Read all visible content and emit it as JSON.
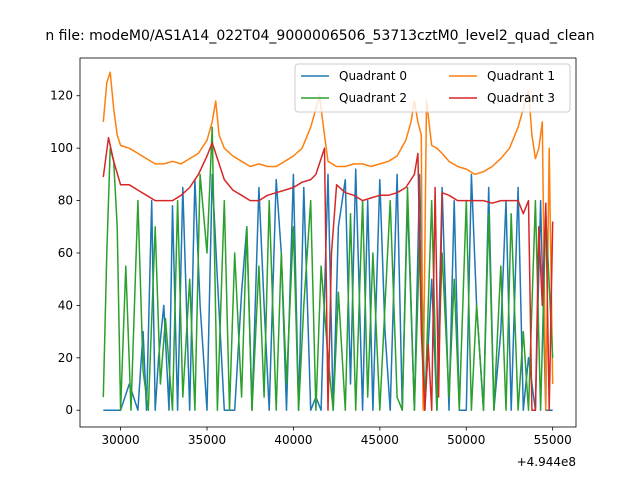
{
  "chart_data": {
    "type": "line",
    "title": "n file: modeM0/AS1A14_022T04_9000006506_53713cztM0_level2_quad_clean",
    "xlabel": "",
    "ylabel": "",
    "x_offset_label": "+4.944e8",
    "xlim": [
      27650,
      56350
    ],
    "ylim": [
      -6.4,
      134.4
    ],
    "x_ticks": [
      30000,
      35000,
      40000,
      45000,
      50000,
      55000
    ],
    "x_tick_labels": [
      "30000",
      "35000",
      "40000",
      "45000",
      "50000",
      "55000"
    ],
    "y_ticks": [
      0,
      20,
      40,
      60,
      80,
      100,
      120
    ],
    "y_tick_labels": [
      "0",
      "20",
      "40",
      "60",
      "80",
      "100",
      "120"
    ],
    "grid": false,
    "legend_position": "top-right",
    "legend_columns": 2,
    "series": [
      {
        "name": "Quadrant 0",
        "color": "#1f77b4",
        "x": [
          29000,
          30000,
          30500,
          31000,
          31300,
          31500,
          31800,
          32000,
          32200,
          32500,
          32800,
          33000,
          33300,
          33600,
          34000,
          34300,
          34600,
          35000,
          35300,
          35600,
          36000,
          36300,
          36600,
          37000,
          37300,
          37600,
          38000,
          38300,
          38600,
          39000,
          39300,
          39600,
          40000,
          40300,
          40600,
          41000,
          41300,
          41600,
          42000,
          42300,
          42600,
          43000,
          43300,
          43600,
          44000,
          44300,
          44600,
          45000,
          45300,
          45600,
          46000,
          46300,
          46600,
          47000,
          47300,
          47600,
          48000,
          48300,
          48600,
          49000,
          49300,
          49600,
          50000,
          50300,
          50600,
          51000,
          51300,
          51600,
          52000,
          52300,
          52600,
          53000,
          53300,
          53600,
          54000,
          54300,
          54600,
          55000
        ],
        "y": [
          0,
          0,
          10,
          0,
          30,
          0,
          80,
          0,
          20,
          40,
          0,
          78,
          0,
          85,
          0,
          88,
          40,
          0,
          90,
          50,
          0,
          0,
          0,
          45,
          70,
          0,
          85,
          40,
          0,
          88,
          60,
          0,
          90,
          0,
          85,
          0,
          5,
          0,
          90,
          0,
          70,
          88,
          10,
          92,
          0,
          80,
          0,
          88,
          30,
          0,
          90,
          0,
          80,
          0,
          90,
          0,
          50,
          0,
          85,
          0,
          80,
          0,
          0,
          90,
          40,
          0,
          85,
          0,
          30,
          80,
          0,
          85,
          0,
          20,
          0,
          80,
          0,
          0
        ]
      },
      {
        "name": "Quadrant 1",
        "color": "#ff7f0e",
        "x": [
          29000,
          29200,
          29400,
          29600,
          29800,
          30000,
          30500,
          31000,
          31500,
          32000,
          32500,
          33000,
          33500,
          34000,
          34500,
          35000,
          35300,
          35500,
          35700,
          36000,
          36500,
          37000,
          37500,
          38000,
          38500,
          39000,
          39500,
          40000,
          40500,
          41000,
          41300,
          41500,
          41800,
          42000,
          42500,
          43000,
          43500,
          44000,
          44500,
          45000,
          45500,
          46000,
          46500,
          46800,
          47000,
          47200,
          47400,
          47500,
          47700,
          48000,
          48300,
          48600,
          49000,
          49500,
          50000,
          50500,
          51000,
          51500,
          52000,
          52500,
          53000,
          53300,
          53600,
          53800,
          54000,
          54200,
          54400,
          54600,
          54800,
          55000
        ],
        "y": [
          110,
          125,
          129,
          115,
          105,
          101,
          100,
          98,
          96,
          94,
          94,
          95,
          94,
          96,
          98,
          103,
          110,
          118,
          105,
          100,
          97,
          95,
          93,
          94,
          93,
          93,
          95,
          97,
          100,
          108,
          115,
          120,
          105,
          95,
          93,
          93,
          94,
          94,
          93,
          94,
          95,
          97,
          103,
          110,
          118,
          110,
          105,
          0,
          118,
          101,
          100,
          98,
          95,
          93,
          92,
          90,
          91,
          93,
          96,
          100,
          108,
          115,
          122,
          105,
          96,
          100,
          110,
          0,
          100,
          10
        ]
      },
      {
        "name": "Quadrant 2",
        "color": "#2ca02c",
        "x": [
          29000,
          29200,
          29400,
          29600,
          29800,
          30000,
          30300,
          30600,
          31000,
          31300,
          31600,
          32000,
          32300,
          32600,
          33000,
          33300,
          33600,
          34000,
          34300,
          34600,
          35000,
          35300,
          35600,
          36000,
          36300,
          36600,
          37000,
          37300,
          37600,
          38000,
          38300,
          38600,
          39000,
          39300,
          39600,
          40000,
          40300,
          40600,
          41000,
          41300,
          41600,
          42000,
          42300,
          42600,
          43000,
          43300,
          43600,
          44000,
          44300,
          44600,
          45000,
          45300,
          45600,
          46000,
          46300,
          46600,
          47000,
          47300,
          47600,
          48000,
          48300,
          48600,
          49000,
          49300,
          49600,
          50000,
          50300,
          50600,
          51000,
          51300,
          51600,
          52000,
          52300,
          52600,
          53000,
          53300,
          53600,
          54000,
          54300,
          54600,
          55000
        ],
        "y": [
          5,
          60,
          100,
          95,
          70,
          0,
          55,
          0,
          80,
          15,
          0,
          70,
          10,
          35,
          0,
          80,
          5,
          50,
          0,
          90,
          60,
          108,
          0,
          80,
          0,
          60,
          5,
          70,
          0,
          55,
          5,
          80,
          0,
          60,
          10,
          70,
          0,
          40,
          80,
          0,
          55,
          20,
          0,
          45,
          0,
          75,
          0,
          80,
          5,
          60,
          0,
          40,
          80,
          5,
          0,
          85,
          0,
          65,
          0,
          80,
          0,
          60,
          5,
          50,
          0,
          80,
          0,
          40,
          0,
          75,
          0,
          55,
          0,
          75,
          0,
          30,
          0,
          80,
          0,
          75,
          20
        ]
      },
      {
        "name": "Quadrant 3",
        "color": "#d62728",
        "x": [
          29000,
          29300,
          29600,
          30000,
          30500,
          31000,
          31500,
          32000,
          32500,
          33000,
          33500,
          34000,
          34500,
          35000,
          35300,
          35600,
          36000,
          36500,
          37000,
          37500,
          38000,
          38500,
          39000,
          39500,
          40000,
          40500,
          41000,
          41300,
          41600,
          41800,
          42000,
          42200,
          42500,
          43000,
          43500,
          44000,
          44500,
          45000,
          45500,
          46000,
          46500,
          47000,
          47200,
          47400,
          47600,
          47800,
          48000,
          48200,
          48400,
          48600,
          49000,
          49500,
          50000,
          50500,
          51000,
          51500,
          52000,
          52500,
          53000,
          53300,
          53600,
          53800,
          54000,
          54200,
          54400,
          54600,
          54800,
          55000
        ],
        "y": [
          89,
          104,
          95,
          86,
          86,
          84,
          82,
          80,
          80,
          80,
          82,
          85,
          90,
          97,
          102,
          96,
          88,
          84,
          82,
          80,
          80,
          82,
          83,
          84,
          85,
          87,
          88,
          90,
          96,
          100,
          0,
          60,
          86,
          83,
          82,
          80,
          81,
          82,
          82,
          83,
          85,
          90,
          98,
          30,
          0,
          25,
          0,
          85,
          5,
          83,
          82,
          80,
          80,
          80,
          80,
          79,
          80,
          80,
          80,
          75,
          80,
          0,
          0,
          70,
          40,
          79,
          0,
          72
        ]
      }
    ]
  }
}
